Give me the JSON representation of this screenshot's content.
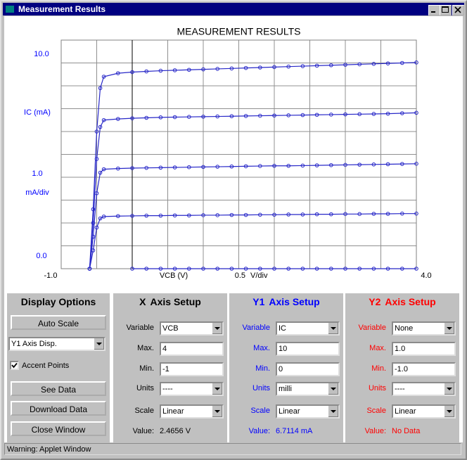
{
  "window": {
    "title": "Measurement Results"
  },
  "chart_data": {
    "type": "line",
    "title": "MEASUREMENT RESULTS",
    "xlabel": "VCB (V)",
    "ylabel": "IC (mA)",
    "x_division": {
      "value": 0.5,
      "label": "0.5"
    },
    "x_division_unit": "V/div",
    "y_division": {
      "value": 1,
      "label": "1.0"
    },
    "y_division_unit": "mA/div",
    "xlim": [
      -1,
      4
    ],
    "ylim": [
      0,
      10
    ],
    "xticks": [
      {
        "value": -1,
        "label": "-1.0"
      },
      {
        "value": 4,
        "label": "4.0"
      }
    ],
    "yticks": [
      {
        "value": 0,
        "label": "0.0"
      },
      {
        "value": 10,
        "label": "10.0"
      }
    ],
    "grid": true,
    "markers": true,
    "x": [
      -0.6,
      -0.55,
      -0.5,
      -0.45,
      -0.4,
      -0.2,
      0,
      0.2,
      0.4,
      0.6,
      0.8,
      1,
      1.2,
      1.4,
      1.6,
      1.8,
      2,
      2.2,
      2.4,
      2.6,
      2.8,
      3,
      3.2,
      3.4,
      3.6,
      3.8,
      4
    ],
    "series": [
      {
        "color": "#2828c8",
        "values": [
          0,
          2.6,
          6.0,
          7.9,
          8.4,
          8.55,
          8.6,
          8.63,
          8.66,
          8.68,
          8.7,
          8.72,
          8.74,
          8.76,
          8.78,
          8.8,
          8.82,
          8.84,
          8.86,
          8.88,
          8.9,
          8.92,
          8.94,
          8.96,
          8.98,
          9.0,
          9.02
        ]
      },
      {
        "color": "#2828c8",
        "values": [
          0,
          2.0,
          4.8,
          6.2,
          6.5,
          6.55,
          6.58,
          6.6,
          6.62,
          6.63,
          6.64,
          6.65,
          6.66,
          6.67,
          6.68,
          6.69,
          6.7,
          6.71,
          6.72,
          6.73,
          6.74,
          6.75,
          6.76,
          6.77,
          6.78,
          6.8,
          6.82
        ]
      },
      {
        "color": "#2828c8",
        "values": [
          0,
          1.4,
          3.3,
          4.2,
          4.35,
          4.38,
          4.4,
          4.41,
          4.42,
          4.43,
          4.44,
          4.45,
          4.46,
          4.47,
          4.48,
          4.49,
          4.5,
          4.5,
          4.51,
          4.52,
          4.53,
          4.54,
          4.55,
          4.56,
          4.57,
          4.58,
          4.59
        ]
      },
      {
        "color": "#2828c8",
        "values": [
          0,
          0.8,
          1.8,
          2.2,
          2.28,
          2.3,
          2.31,
          2.32,
          2.32,
          2.33,
          2.33,
          2.34,
          2.34,
          2.35,
          2.35,
          2.36,
          2.36,
          2.37,
          2.37,
          2.38,
          2.38,
          2.39,
          2.39,
          2.4,
          2.4,
          2.41,
          2.41
        ]
      },
      {
        "color": "#2828c8",
        "values": [
          null,
          null,
          null,
          null,
          null,
          null,
          0,
          0,
          0,
          0,
          0,
          0,
          0,
          0,
          0,
          0,
          0,
          0,
          0,
          0,
          0,
          0,
          0,
          0,
          0,
          0,
          0
        ]
      }
    ]
  },
  "display_options": {
    "title": "Display Options",
    "auto_scale": "Auto Scale",
    "y_axis_display": "Y1 Axis Disp.",
    "accent_points": {
      "label": "Accent Points",
      "checked": true
    },
    "see_data": "See Data",
    "download_data": "Download Data",
    "close_window": "Close Window"
  },
  "axis_setup": [
    {
      "axis": "X",
      "title": "Axis Setup",
      "color": "#000000",
      "fields": [
        {
          "label": "Variable",
          "value": "VCB",
          "kind": "select"
        },
        {
          "label": "Max.",
          "value": "4",
          "kind": "text"
        },
        {
          "label": "Min.",
          "value": "-1",
          "kind": "text"
        },
        {
          "label": "Units",
          "value": "----",
          "kind": "select"
        },
        {
          "label": "Scale",
          "value": "Linear",
          "kind": "select"
        }
      ],
      "value_label": "Value:",
      "value": "2.4656 V"
    },
    {
      "axis": "Y1",
      "title": "Axis Setup",
      "color": "#0000ff",
      "fields": [
        {
          "label": "Variable",
          "value": "IC",
          "kind": "select"
        },
        {
          "label": "Max.",
          "value": "10",
          "kind": "text"
        },
        {
          "label": "Min.",
          "value": "0",
          "kind": "text"
        },
        {
          "label": "Units",
          "value": "milli",
          "kind": "select"
        },
        {
          "label": "Scale",
          "value": "Linear",
          "kind": "select"
        }
      ],
      "value_label": "Value:",
      "value": "6.7114 mA"
    },
    {
      "axis": "Y2",
      "title": "Axis Setup",
      "color": "#ff0000",
      "fields": [
        {
          "label": "Variable",
          "value": "None",
          "kind": "select"
        },
        {
          "label": "Max.",
          "value": "1.0",
          "kind": "text"
        },
        {
          "label": "Min.",
          "value": "-1.0",
          "kind": "text"
        },
        {
          "label": "Units",
          "value": "----",
          "kind": "select"
        },
        {
          "label": "Scale",
          "value": "Linear",
          "kind": "select"
        }
      ],
      "value_label": "Value:",
      "value": "No Data"
    }
  ],
  "status_bar": "Warning: Applet Window"
}
